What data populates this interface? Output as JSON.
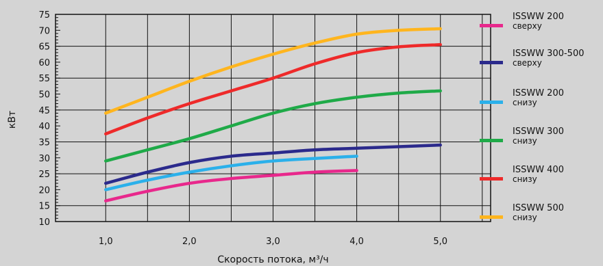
{
  "chart_data": {
    "type": "line",
    "title": "",
    "xlabel": "Скорость потока, м³/ч",
    "ylabel": "кВт",
    "xlim": [
      0.4,
      5.6
    ],
    "ylim": [
      10,
      75
    ],
    "x_ticks": [
      {
        "value": 1.0,
        "label": "1,0"
      },
      {
        "value": 2.0,
        "label": "2,0"
      },
      {
        "value": 3.0,
        "label": "3,0"
      },
      {
        "value": 4.0,
        "label": "4,0"
      },
      {
        "value": 5.0,
        "label": "5,0"
      }
    ],
    "y_ticks": [
      10,
      15,
      20,
      25,
      30,
      35,
      40,
      45,
      50,
      55,
      60,
      65,
      70,
      75
    ],
    "grid": true,
    "legend_position": "right",
    "series": [
      {
        "name": "ISSWW 200",
        "sub": "сверху",
        "color": "#e8288c",
        "x": [
          1.0,
          1.5,
          2.0,
          2.5,
          3.0,
          3.5,
          4.0
        ],
        "y": [
          16.5,
          19.5,
          22,
          23.5,
          24.5,
          25.5,
          26
        ]
      },
      {
        "name": "ISSWW 300-500",
        "sub": "сверху",
        "color": "#2b2a8c",
        "x": [
          1.0,
          1.5,
          2.0,
          2.5,
          3.0,
          3.5,
          4.0,
          4.5,
          5.0
        ],
        "y": [
          22,
          25.5,
          28.5,
          30.5,
          31.5,
          32.5,
          33,
          33.5,
          34
        ]
      },
      {
        "name": "ISSWW 200",
        "sub": "снизу",
        "color": "#2bb0ea",
        "x": [
          1.0,
          1.5,
          2.0,
          2.5,
          3.0,
          3.5,
          4.0
        ],
        "y": [
          20,
          23,
          25.5,
          27.5,
          29,
          29.8,
          30.5
        ]
      },
      {
        "name": "ISSWW 300",
        "sub": "снизу",
        "color": "#1faa48",
        "x": [
          1.0,
          1.5,
          2.0,
          2.5,
          3.0,
          3.5,
          4.0,
          4.5,
          5.0
        ],
        "y": [
          29,
          32.5,
          36,
          40,
          44,
          47,
          49,
          50.3,
          51
        ]
      },
      {
        "name": "ISSWW 400",
        "sub": "снизу",
        "color": "#ee2a2a",
        "x": [
          1.0,
          1.5,
          2.0,
          2.5,
          3.0,
          3.5,
          4.0,
          4.5,
          5.0
        ],
        "y": [
          37.5,
          42.5,
          47,
          51,
          55,
          59.5,
          63,
          64.8,
          65.5
        ]
      },
      {
        "name": "ISSWW 500",
        "sub": "снизу",
        "color": "#ffb51e",
        "x": [
          1.0,
          1.5,
          2.0,
          2.5,
          3.0,
          3.5,
          4.0,
          4.5,
          5.0
        ],
        "y": [
          44,
          49,
          54,
          58.5,
          62.5,
          66,
          68.8,
          70,
          70.5
        ]
      }
    ]
  }
}
